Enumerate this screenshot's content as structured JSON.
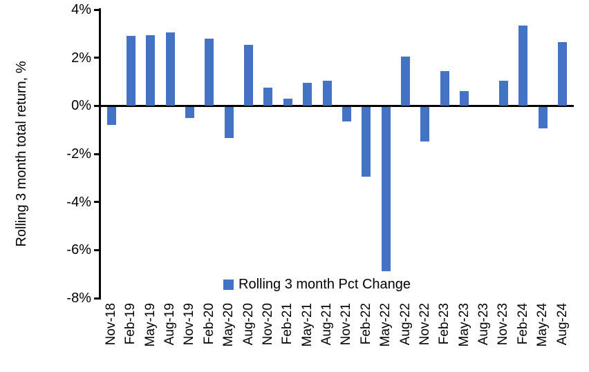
{
  "colors": {
    "bar": "#4472C4",
    "axis": "#000000",
    "text": "#000000",
    "background": "#FFFFFF"
  },
  "chart_data": {
    "type": "bar",
    "title": "",
    "xlabel": "",
    "ylabel": "Rolling 3 month total return, %",
    "legend_label": "Rolling 3 month Pct Change",
    "legend_position": "bottom-center-inside",
    "grid": false,
    "ylim": [
      -8,
      4
    ],
    "ytick_step": 2,
    "ytick_labels": [
      "4%",
      "2%",
      "0%",
      "-2%",
      "-4%",
      "-6%",
      "-8%"
    ],
    "categories": [
      "Nov-18",
      "Feb-19",
      "May-19",
      "Aug-19",
      "Nov-19",
      "Feb-20",
      "May-20",
      "Aug-20",
      "Nov-20",
      "Feb-21",
      "May-21",
      "Aug-21",
      "Nov-21",
      "Feb-22",
      "May-22",
      "Aug-22",
      "Nov-22",
      "Feb-23",
      "May-23",
      "Aug-23",
      "Nov-23",
      "Feb-24",
      "May-24",
      "Aug-24"
    ],
    "values": [
      -0.75,
      2.9,
      2.95,
      3.05,
      -0.45,
      2.8,
      -1.3,
      2.55,
      0.75,
      0.3,
      0.95,
      1.05,
      -0.6,
      -2.9,
      -6.85,
      2.05,
      -1.45,
      1.45,
      0.6,
      0.0,
      1.05,
      3.35,
      -0.9,
      2.65
    ],
    "unit": "%"
  }
}
